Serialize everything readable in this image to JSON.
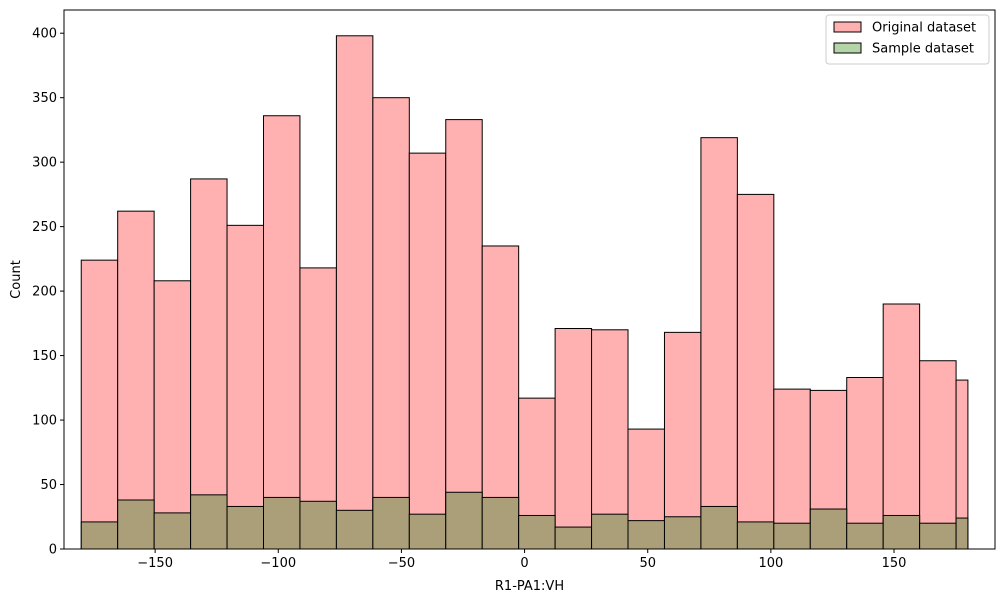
{
  "chart_data": {
    "type": "bar",
    "xlabel": "R1-PA1:VH",
    "ylabel": "Count",
    "xlim": [
      -187,
      191
    ],
    "ylim": [
      0,
      418
    ],
    "x_ticks": [
      -150,
      -100,
      -50,
      0,
      50,
      100,
      150
    ],
    "x_tick_labels": [
      "−150",
      "−100",
      "−50",
      "0",
      "50",
      "100",
      "150"
    ],
    "y_ticks": [
      0,
      50,
      100,
      150,
      200,
      250,
      300,
      350,
      400
    ],
    "y_tick_labels": [
      "0",
      "50",
      "100",
      "150",
      "200",
      "250",
      "300",
      "350",
      "400"
    ],
    "bin_edges": [
      -180,
      -165.2,
      -150.4,
      -135.6,
      -120.8,
      -106,
      -91.2,
      -76.4,
      -61.6,
      -46.8,
      -32,
      -17.2,
      -2.4,
      12.4,
      27.2,
      42,
      56.8,
      71.6,
      86.4,
      101.2,
      116,
      130.8,
      145.6,
      160.4,
      175.2,
      180
    ],
    "series": [
      {
        "name": "Original dataset",
        "color": "#ffb1b1",
        "values": [
          224,
          262,
          208,
          287,
          251,
          336,
          218,
          398,
          350,
          307,
          333,
          235,
          117,
          171,
          170,
          93,
          168,
          319,
          275,
          124,
          123,
          133,
          190,
          146,
          131
        ]
      },
      {
        "name": "Sample dataset",
        "color": "#ab9f79",
        "legend_color": "#b3d5a8",
        "values": [
          21,
          38,
          28,
          42,
          33,
          40,
          37,
          30,
          40,
          27,
          44,
          40,
          26,
          17,
          27,
          22,
          25,
          33,
          21,
          20,
          31,
          20,
          26,
          20,
          24
        ]
      }
    ],
    "edge_color": "#000000",
    "legend_position": "top-right",
    "grid": false
  }
}
